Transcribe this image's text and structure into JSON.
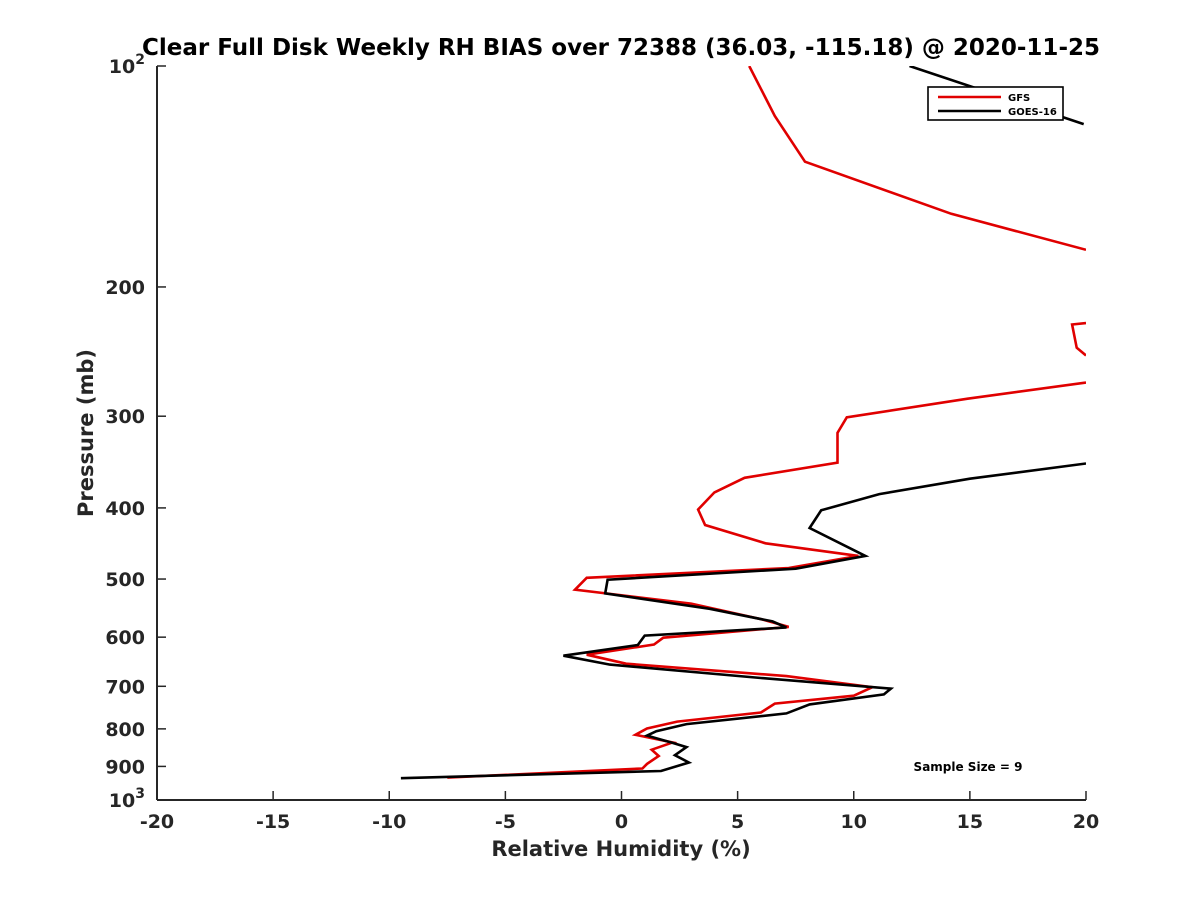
{
  "chart_data": {
    "type": "line",
    "title": "Clear Full Disk Weekly RH BIAS over 72388 (36.03, -115.18) @ 2020-11-25",
    "xlabel": "Relative Humidity (%)",
    "ylabel": "Pressure (mb)",
    "xlim": [
      -20,
      20
    ],
    "ylim": [
      100,
      1000
    ],
    "y_scale": "log",
    "y_reversed": true,
    "grid": false,
    "legend_position": "top-right",
    "x_ticks": [
      "-20",
      "-15",
      "-10",
      "-5",
      "0",
      "5",
      "10",
      "15",
      "20"
    ],
    "y_ticks": [
      {
        "value": 100,
        "base": "10",
        "exp": "2"
      },
      {
        "value": 200,
        "label": "200"
      },
      {
        "value": 300,
        "label": "300"
      },
      {
        "value": 400,
        "label": "400"
      },
      {
        "value": 500,
        "label": "500"
      },
      {
        "value": 600,
        "label": "600"
      },
      {
        "value": 700,
        "label": "700"
      },
      {
        "value": 800,
        "label": "800"
      },
      {
        "value": 900,
        "label": "900"
      },
      {
        "value": 1000,
        "base": "10",
        "exp": "3"
      }
    ],
    "annotation": "Sample Size = 9",
    "series": [
      {
        "name": "GFS",
        "color": "#e00000",
        "points": [
          [
            5.5,
            100
          ],
          [
            6.6,
            117
          ],
          [
            7.9,
            135
          ],
          [
            14.2,
            159
          ],
          [
            20.0,
            178
          ],
          [
            null,
            null
          ],
          [
            20.0,
            224
          ],
          [
            19.4,
            225
          ],
          [
            19.6,
            242
          ],
          [
            20.0,
            248
          ],
          [
            null,
            null
          ],
          [
            20.0,
            270
          ],
          [
            14.9,
            284
          ],
          [
            9.7,
            301
          ],
          [
            9.3,
            316
          ],
          [
            9.3,
            347
          ],
          [
            5.3,
            364
          ],
          [
            4.0,
            381
          ],
          [
            3.3,
            402
          ],
          [
            3.6,
            422
          ],
          [
            6.2,
            447
          ],
          [
            10.2,
            465
          ],
          [
            7.2,
            483
          ],
          [
            -1.5,
            498
          ],
          [
            -2.0,
            517
          ],
          [
            3.0,
            540
          ],
          [
            6.0,
            567
          ],
          [
            7.2,
            581
          ],
          [
            1.8,
            601
          ],
          [
            1.4,
            614
          ],
          [
            -1.5,
            634
          ],
          [
            0.2,
            652
          ],
          [
            7.1,
            678
          ],
          [
            10.8,
            702
          ],
          [
            10.0,
            721
          ],
          [
            6.6,
            739
          ],
          [
            6.0,
            760
          ],
          [
            2.4,
            782
          ],
          [
            1.1,
            799
          ],
          [
            0.6,
            815
          ],
          [
            2.2,
            835
          ],
          [
            1.3,
            854
          ],
          [
            1.6,
            871
          ],
          [
            1.1,
            893
          ],
          [
            0.9,
            906
          ],
          [
            -7.5,
            932
          ]
        ]
      },
      {
        "name": "GOES-16",
        "color": "#000000",
        "points": [
          [
            null,
            null
          ],
          [
            12.4,
            100
          ],
          [
            19.9,
            120
          ],
          [
            null,
            null
          ],
          [
            20.0,
            348
          ],
          [
            15.0,
            365
          ],
          [
            11.1,
            383
          ],
          [
            8.6,
            403
          ],
          [
            8.1,
            426
          ],
          [
            10.5,
            465
          ],
          [
            7.5,
            484
          ],
          [
            -0.6,
            501
          ],
          [
            -0.7,
            523
          ],
          [
            3.8,
            549
          ],
          [
            6.5,
            571
          ],
          [
            7.1,
            582
          ],
          [
            1.0,
            597
          ],
          [
            0.7,
            615
          ],
          [
            -2.5,
            636
          ],
          [
            -0.5,
            654
          ],
          [
            6.0,
            682
          ],
          [
            11.6,
            705
          ],
          [
            11.3,
            718
          ],
          [
            8.1,
            741
          ],
          [
            7.1,
            762
          ],
          [
            2.8,
            788
          ],
          [
            1.5,
            806
          ],
          [
            1.1,
            817
          ],
          [
            2.2,
            836
          ],
          [
            2.8,
            847
          ],
          [
            2.3,
            869
          ],
          [
            2.9,
            889
          ],
          [
            1.7,
            913
          ],
          [
            -9.5,
            934
          ]
        ]
      }
    ]
  }
}
